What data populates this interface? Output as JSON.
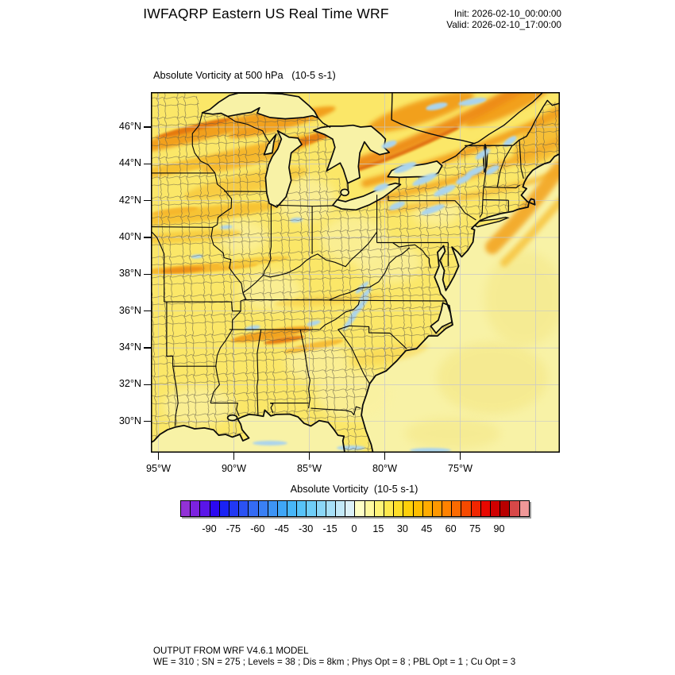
{
  "header": {
    "title": "IWFAQRP Eastern US Real Time WRF",
    "init": "Init: 2026-02-10_00:00:00",
    "valid": "Valid: 2026-02-10_17:00:00"
  },
  "map": {
    "title": "Absolute Vorticity at 500 hPa   (10-5 s-1)",
    "lat_ticks": [
      {
        "value": 46,
        "label": "46°N"
      },
      {
        "value": 44,
        "label": "44°N"
      },
      {
        "value": 42,
        "label": "42°N"
      },
      {
        "value": 40,
        "label": "40°N"
      },
      {
        "value": 38,
        "label": "38°N"
      },
      {
        "value": 36,
        "label": "36°N"
      },
      {
        "value": 34,
        "label": "34°N"
      },
      {
        "value": 32,
        "label": "32°N"
      },
      {
        "value": 30,
        "label": "30°N"
      }
    ],
    "lon_ticks": [
      {
        "value": -95,
        "label": "95°W"
      },
      {
        "value": -90,
        "label": "90°W"
      },
      {
        "value": -85,
        "label": "85°W"
      },
      {
        "value": -80,
        "label": "80°W"
      },
      {
        "value": -75,
        "label": "75°W"
      }
    ],
    "field_colors": {
      "land_base": "#FBE768",
      "ocean": "#F8F2A6",
      "pale_patch": "#FAF1A0",
      "band_orange": "#F2A01E",
      "band_orange2": "#F6B62A",
      "band_core": "#E5790D",
      "band_core2": "#ED8E15",
      "gold": "#F7C231",
      "gold2": "#F8CC3E",
      "gold3": "#F9D44E",
      "ocean_yellow": "#F5E98C",
      "blue_patch": "#ABD4EC",
      "boundary": "#0b0b0b",
      "graticule": "#c8c8c8",
      "county_line": "#5d5848"
    }
  },
  "colorbar": {
    "title": "Absolute Vorticity  (10-5 s-1)",
    "min": -108,
    "max": 108,
    "tick_values": [
      -90,
      -75,
      -60,
      -45,
      -30,
      -15,
      0,
      15,
      30,
      45,
      60,
      75,
      90
    ],
    "colors": [
      "#9232D6",
      "#7C22E0",
      "#5A15E8",
      "#2B08F0",
      "#1A22F4",
      "#2138F3",
      "#2B52F3",
      "#346BF4",
      "#3A80F5",
      "#3D94F6",
      "#3FA6F7",
      "#47B6F8",
      "#57C3F8",
      "#6FCEF8",
      "#8BD7F7",
      "#A7E0F7",
      "#C3E9F7",
      "#DCF1F8",
      "#FFFFC6",
      "#FFF9A0",
      "#FFF378",
      "#FFE94E",
      "#FFDE28",
      "#FFD00A",
      "#FFBE00",
      "#FFAC00",
      "#FF9800",
      "#FF8200",
      "#FB6A00",
      "#F64A00",
      "#F02600",
      "#E80800",
      "#D00000",
      "#B80000",
      "#D84848",
      "#F09898"
    ]
  },
  "footer": {
    "line1": "OUTPUT FROM WRF V4.6.1 MODEL",
    "line2": "WE = 310 ; SN = 275 ; Levels = 38 ; Dis = 8km ; Phys Opt = 8 ; PBL Opt = 1 ; Cu Opt = 3"
  }
}
